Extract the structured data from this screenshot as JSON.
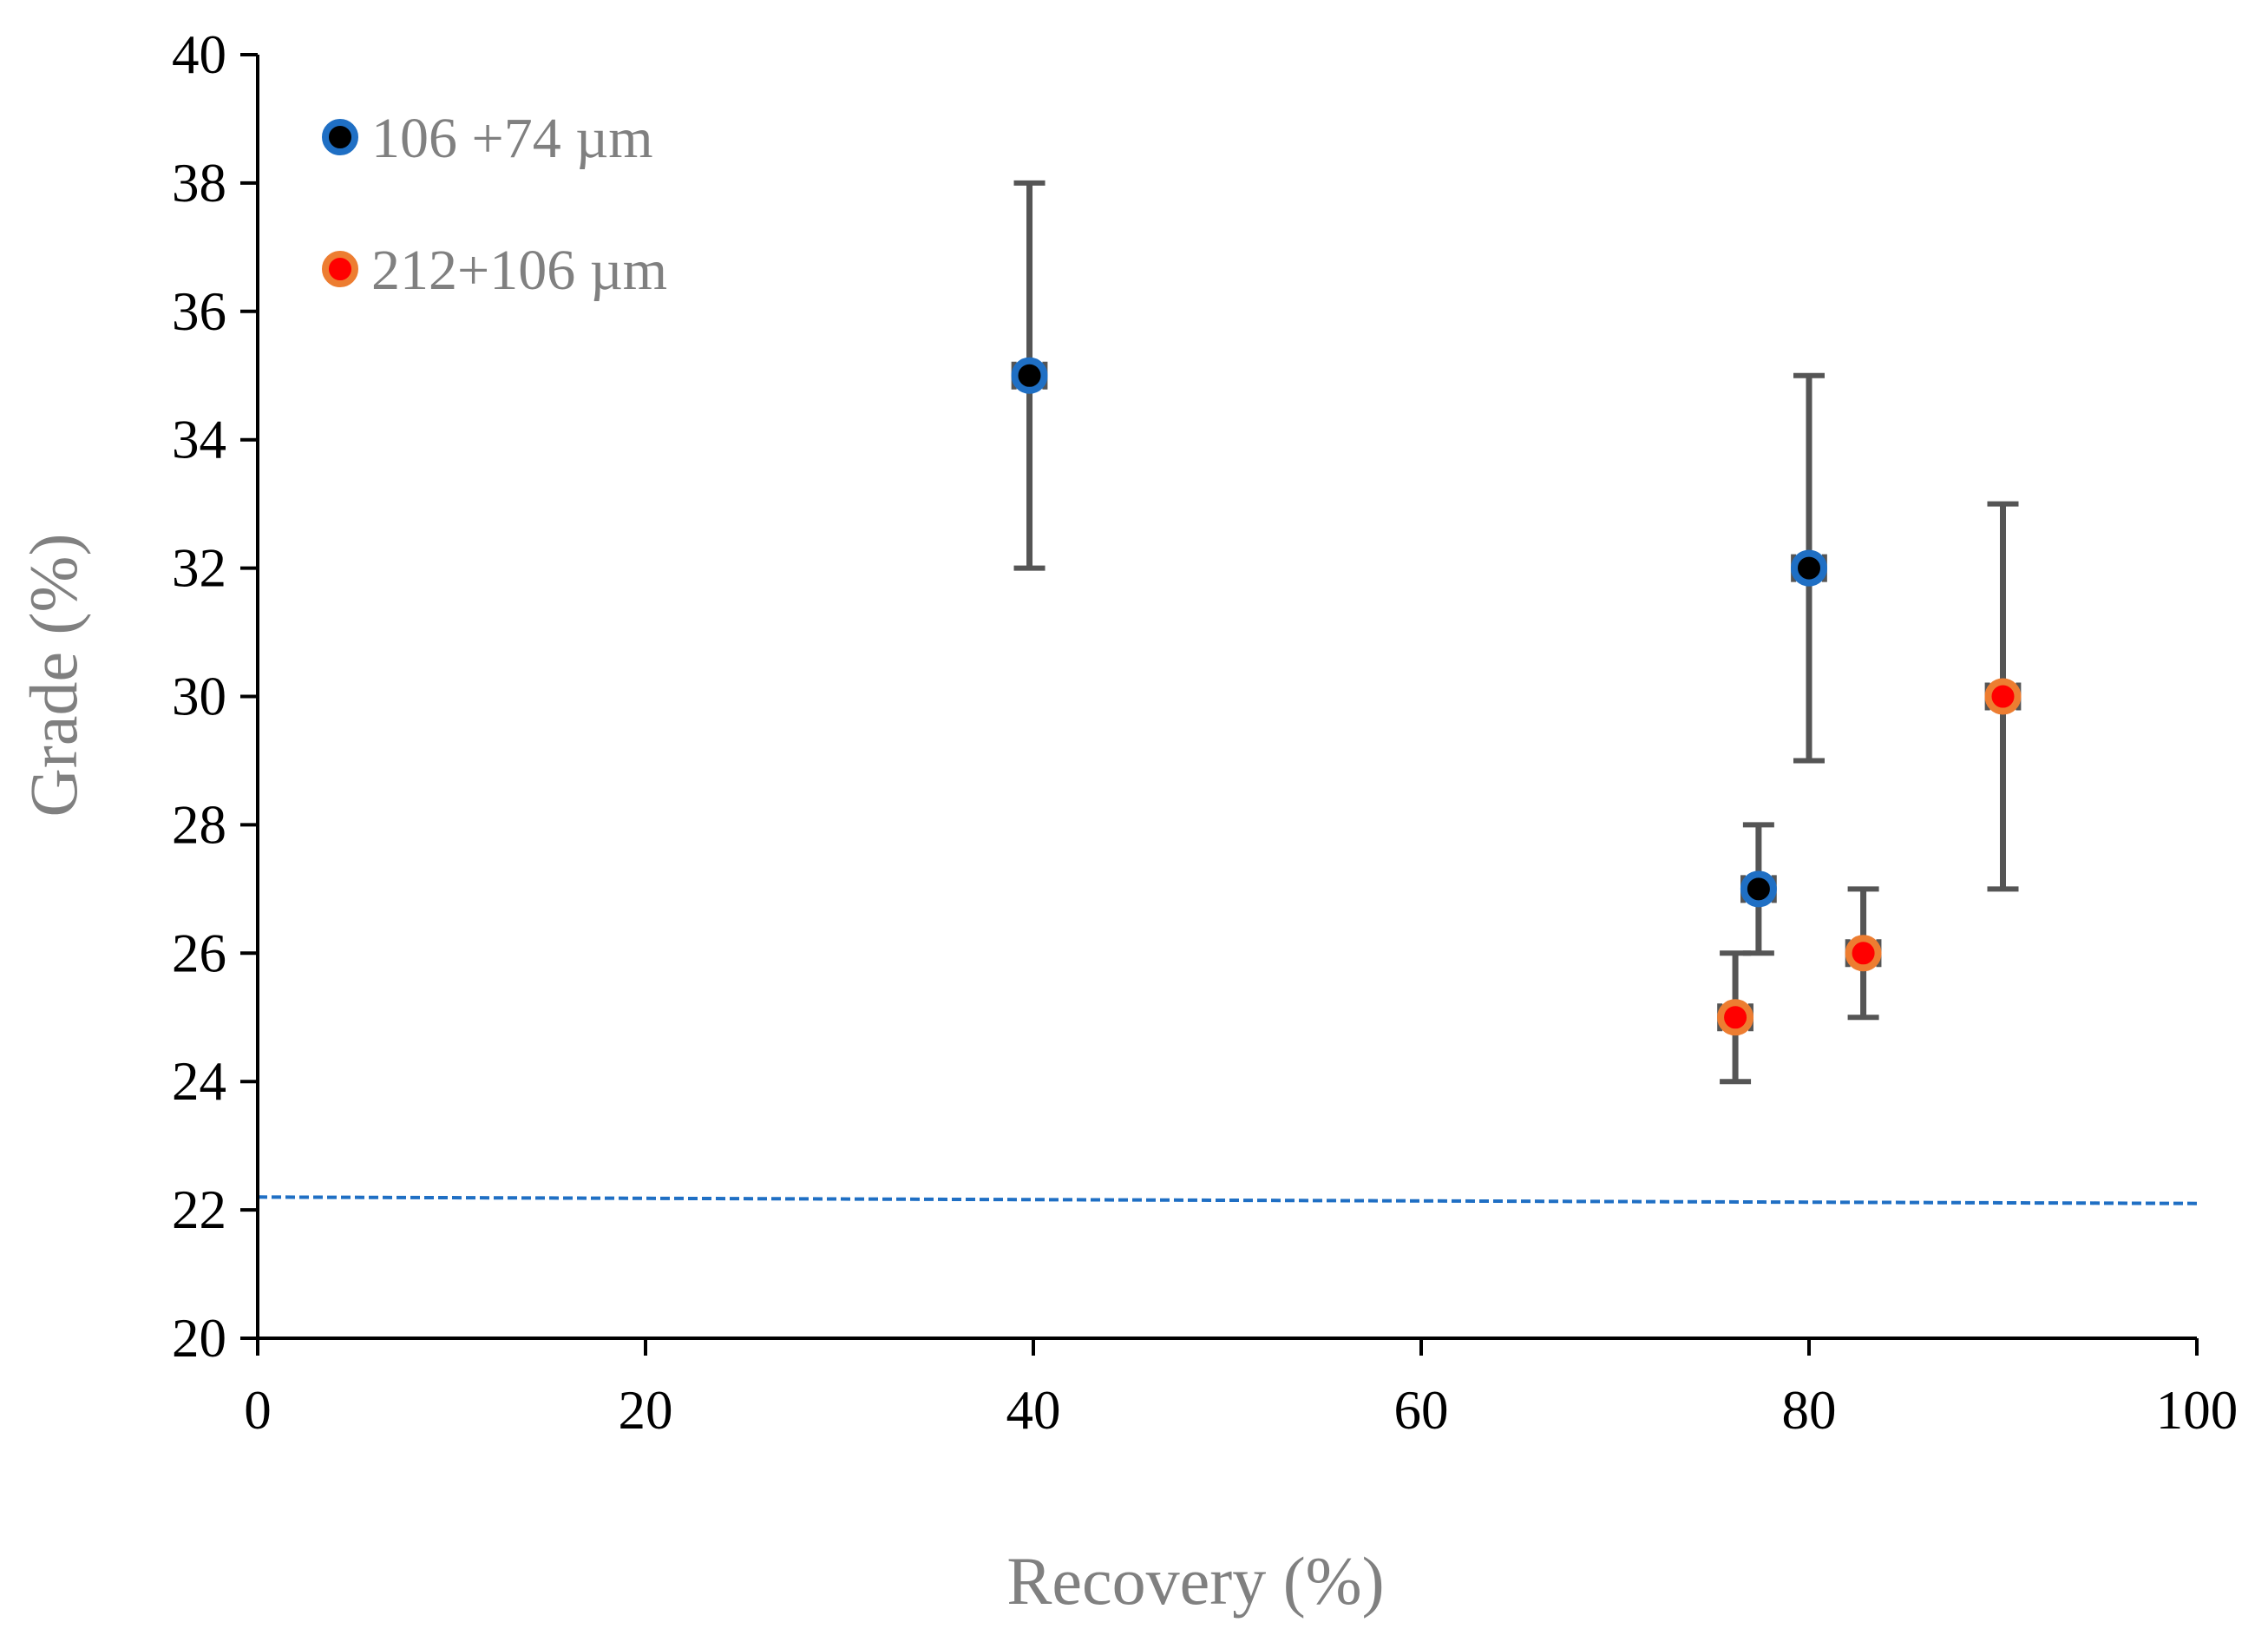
{
  "chart_data": {
    "type": "scatter",
    "title": "",
    "xlabel": "Recovery (%)",
    "ylabel": "Grade (%)",
    "xlim": [
      0,
      100
    ],
    "ylim": [
      20,
      40
    ],
    "xticks": [
      0,
      20,
      40,
      60,
      80,
      100
    ],
    "yticks": [
      20,
      22,
      24,
      26,
      28,
      30,
      32,
      34,
      36,
      38,
      40
    ],
    "xtick_labels": [
      "0",
      "20",
      "40",
      "60",
      "80",
      "100"
    ],
    "ytick_labels": [
      "20",
      "22",
      "24",
      "26",
      "28",
      "30",
      "32",
      "34",
      "36",
      "38",
      "40"
    ],
    "grid": false,
    "legend_position": "top-left",
    "series": [
      {
        "name": "106 +74 µm",
        "fill_color": "#000000",
        "edge_color": "#1f6fc4",
        "points": [
          {
            "x": 39.8,
            "y": 35,
            "y_err_low": 3,
            "y_err_high": 3,
            "x_err": 0.8
          },
          {
            "x": 80.0,
            "y": 32,
            "y_err_low": 3,
            "y_err_high": 3,
            "x_err": 0.8
          },
          {
            "x": 77.4,
            "y": 27,
            "y_err_low": 1,
            "y_err_high": 1,
            "x_err": 0.8
          }
        ]
      },
      {
        "name": "212+106 µm",
        "fill_color": "#ff0000",
        "edge_color": "#ed7d31",
        "points": [
          {
            "x": 76.2,
            "y": 25,
            "y_err_low": 1,
            "y_err_high": 1,
            "x_err": 0.8
          },
          {
            "x": 82.8,
            "y": 26,
            "y_err_low": 1,
            "y_err_high": 1,
            "x_err": 0.8
          },
          {
            "x": 90.0,
            "y": 30,
            "y_err_low": 3,
            "y_err_high": 3,
            "x_err": 0.8
          }
        ]
      }
    ],
    "reference_line": {
      "style": "dashed",
      "color": "#1f6fc4",
      "x": [
        0,
        100
      ],
      "y": [
        22.2,
        22.1
      ]
    },
    "colors": {
      "axis": "#000000",
      "error_bar": "#555555",
      "axis_title": "#808080",
      "legend_text": "#808080"
    }
  }
}
